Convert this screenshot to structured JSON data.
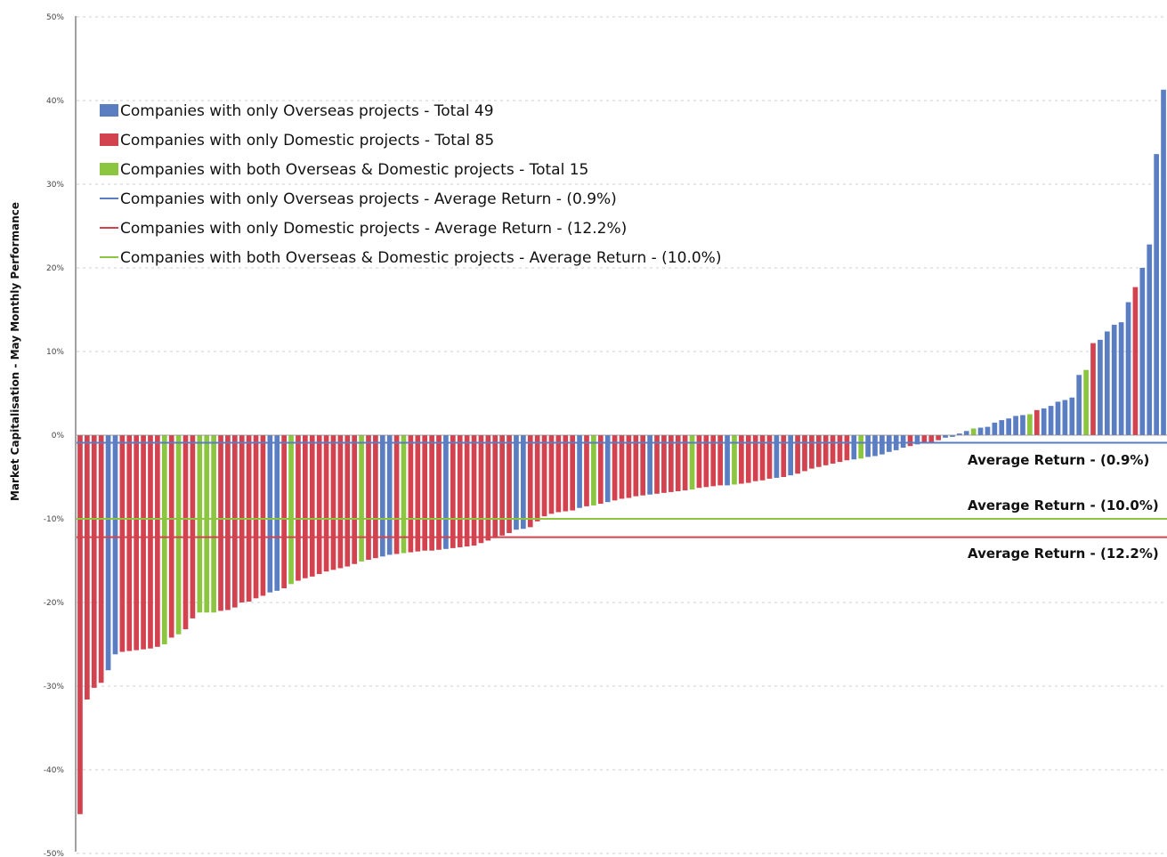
{
  "chart_data": {
    "type": "bar",
    "ylabel": "Market Capitalisation - May Monthly Performance",
    "ylim": [
      -50,
      50
    ],
    "yticks": [
      50,
      40,
      30,
      20,
      10,
      0,
      -10,
      -20,
      -30,
      -40,
      -50
    ],
    "ytick_labels": [
      "50%",
      "40%",
      "30%",
      "20%",
      "10%",
      "0%",
      "-10%",
      "-20%",
      "-30%",
      "-40%",
      "-50%"
    ],
    "grid": true,
    "legend_position": "top-left",
    "colors": {
      "overseas": "#5b7ec2",
      "domestic": "#d2434f",
      "both": "#8cc640"
    },
    "legend": [
      {
        "kind": "bar",
        "series": "overseas",
        "label": "Companies with only Overseas projects - Total 49"
      },
      {
        "kind": "bar",
        "series": "domestic",
        "label": "Companies with only Domestic projects - Total 85"
      },
      {
        "kind": "bar",
        "series": "both",
        "label": "Companies with both Overseas & Domestic projects - Total 15"
      },
      {
        "kind": "line",
        "series": "overseas",
        "label": "Companies with only Overseas projects - Average Return - (0.9%)"
      },
      {
        "kind": "line",
        "series": "domestic",
        "label": "Companies with only Domestic projects - Average Return - (12.2%)"
      },
      {
        "kind": "line",
        "series": "both",
        "label": "Companies with both Overseas & Domestic projects - Average Return - (10.0%)"
      }
    ],
    "averages": [
      {
        "series": "overseas",
        "value": -0.9,
        "label": "Average Return - (0.9%)"
      },
      {
        "series": "both",
        "value": -10.0,
        "label": "Average Return - (10.0%)"
      },
      {
        "series": "domestic",
        "value": -12.2,
        "label": "Average Return - (12.2%)"
      }
    ],
    "bars": [
      {
        "s": "d",
        "v": -45.3
      },
      {
        "s": "d",
        "v": -31.6
      },
      {
        "s": "d",
        "v": -30.2
      },
      {
        "s": "d",
        "v": -29.6
      },
      {
        "s": "o",
        "v": -28.1
      },
      {
        "s": "o",
        "v": -26.2
      },
      {
        "s": "d",
        "v": -25.9
      },
      {
        "s": "d",
        "v": -25.8
      },
      {
        "s": "d",
        "v": -25.7
      },
      {
        "s": "d",
        "v": -25.6
      },
      {
        "s": "d",
        "v": -25.5
      },
      {
        "s": "d",
        "v": -25.3
      },
      {
        "s": "b",
        "v": -25.0
      },
      {
        "s": "d",
        "v": -24.2
      },
      {
        "s": "b",
        "v": -23.8
      },
      {
        "s": "d",
        "v": -23.2
      },
      {
        "s": "d",
        "v": -21.9
      },
      {
        "s": "b",
        "v": -21.2
      },
      {
        "s": "b",
        "v": -21.2
      },
      {
        "s": "b",
        "v": -21.2
      },
      {
        "s": "d",
        "v": -21.0
      },
      {
        "s": "d",
        "v": -20.9
      },
      {
        "s": "d",
        "v": -20.6
      },
      {
        "s": "d",
        "v": -20.0
      },
      {
        "s": "d",
        "v": -19.9
      },
      {
        "s": "d",
        "v": -19.5
      },
      {
        "s": "d",
        "v": -19.2
      },
      {
        "s": "o",
        "v": -18.8
      },
      {
        "s": "o",
        "v": -18.6
      },
      {
        "s": "d",
        "v": -18.3
      },
      {
        "s": "b",
        "v": -17.8
      },
      {
        "s": "d",
        "v": -17.4
      },
      {
        "s": "d",
        "v": -17.1
      },
      {
        "s": "d",
        "v": -16.9
      },
      {
        "s": "d",
        "v": -16.6
      },
      {
        "s": "d",
        "v": -16.3
      },
      {
        "s": "d",
        "v": -16.1
      },
      {
        "s": "d",
        "v": -15.9
      },
      {
        "s": "d",
        "v": -15.7
      },
      {
        "s": "d",
        "v": -15.4
      },
      {
        "s": "b",
        "v": -15.1
      },
      {
        "s": "d",
        "v": -14.9
      },
      {
        "s": "d",
        "v": -14.7
      },
      {
        "s": "o",
        "v": -14.5
      },
      {
        "s": "o",
        "v": -14.3
      },
      {
        "s": "d",
        "v": -14.2
      },
      {
        "s": "b",
        "v": -14.1
      },
      {
        "s": "d",
        "v": -14.0
      },
      {
        "s": "d",
        "v": -13.9
      },
      {
        "s": "d",
        "v": -13.8
      },
      {
        "s": "d",
        "v": -13.8
      },
      {
        "s": "d",
        "v": -13.7
      },
      {
        "s": "o",
        "v": -13.6
      },
      {
        "s": "d",
        "v": -13.5
      },
      {
        "s": "d",
        "v": -13.4
      },
      {
        "s": "d",
        "v": -13.3
      },
      {
        "s": "d",
        "v": -13.2
      },
      {
        "s": "d",
        "v": -12.9
      },
      {
        "s": "d",
        "v": -12.6
      },
      {
        "s": "d",
        "v": -12.3
      },
      {
        "s": "d",
        "v": -12.0
      },
      {
        "s": "d",
        "v": -11.7
      },
      {
        "s": "o",
        "v": -11.3
      },
      {
        "s": "o",
        "v": -11.2
      },
      {
        "s": "d",
        "v": -11.0
      },
      {
        "s": "d",
        "v": -10.3
      },
      {
        "s": "d",
        "v": -9.7
      },
      {
        "s": "d",
        "v": -9.4
      },
      {
        "s": "d",
        "v": -9.2
      },
      {
        "s": "d",
        "v": -9.1
      },
      {
        "s": "d",
        "v": -9.0
      },
      {
        "s": "o",
        "v": -8.7
      },
      {
        "s": "d",
        "v": -8.5
      },
      {
        "s": "b",
        "v": -8.4
      },
      {
        "s": "d",
        "v": -8.2
      },
      {
        "s": "o",
        "v": -8.0
      },
      {
        "s": "d",
        "v": -7.8
      },
      {
        "s": "d",
        "v": -7.6
      },
      {
        "s": "d",
        "v": -7.5
      },
      {
        "s": "d",
        "v": -7.3
      },
      {
        "s": "d",
        "v": -7.2
      },
      {
        "s": "o",
        "v": -7.1
      },
      {
        "s": "d",
        "v": -7.0
      },
      {
        "s": "d",
        "v": -6.9
      },
      {
        "s": "d",
        "v": -6.8
      },
      {
        "s": "d",
        "v": -6.7
      },
      {
        "s": "d",
        "v": -6.6
      },
      {
        "s": "b",
        "v": -6.5
      },
      {
        "s": "d",
        "v": -6.3
      },
      {
        "s": "d",
        "v": -6.2
      },
      {
        "s": "d",
        "v": -6.1
      },
      {
        "s": "d",
        "v": -6.0
      },
      {
        "s": "o",
        "v": -6.0
      },
      {
        "s": "b",
        "v": -5.9
      },
      {
        "s": "d",
        "v": -5.8
      },
      {
        "s": "d",
        "v": -5.7
      },
      {
        "s": "d",
        "v": -5.5
      },
      {
        "s": "d",
        "v": -5.4
      },
      {
        "s": "d",
        "v": -5.2
      },
      {
        "s": "o",
        "v": -5.1
      },
      {
        "s": "d",
        "v": -5.0
      },
      {
        "s": "o",
        "v": -4.8
      },
      {
        "s": "d",
        "v": -4.6
      },
      {
        "s": "d",
        "v": -4.3
      },
      {
        "s": "d",
        "v": -4.0
      },
      {
        "s": "d",
        "v": -3.8
      },
      {
        "s": "d",
        "v": -3.6
      },
      {
        "s": "d",
        "v": -3.4
      },
      {
        "s": "d",
        "v": -3.2
      },
      {
        "s": "d",
        "v": -3.0
      },
      {
        "s": "o",
        "v": -2.9
      },
      {
        "s": "b",
        "v": -2.8
      },
      {
        "s": "o",
        "v": -2.6
      },
      {
        "s": "o",
        "v": -2.5
      },
      {
        "s": "o",
        "v": -2.3
      },
      {
        "s": "o",
        "v": -2.0
      },
      {
        "s": "o",
        "v": -1.8
      },
      {
        "s": "o",
        "v": -1.5
      },
      {
        "s": "d",
        "v": -1.3
      },
      {
        "s": "o",
        "v": -1.1
      },
      {
        "s": "d",
        "v": -0.9
      },
      {
        "s": "d",
        "v": -0.8
      },
      {
        "s": "d",
        "v": -0.6
      },
      {
        "s": "o",
        "v": -0.3
      },
      {
        "s": "o",
        "v": -0.2
      },
      {
        "s": "o",
        "v": 0.2
      },
      {
        "s": "o",
        "v": 0.5
      },
      {
        "s": "b",
        "v": 0.8
      },
      {
        "s": "o",
        "v": 0.9
      },
      {
        "s": "o",
        "v": 1.0
      },
      {
        "s": "o",
        "v": 1.5
      },
      {
        "s": "o",
        "v": 1.8
      },
      {
        "s": "o",
        "v": 2.0
      },
      {
        "s": "o",
        "v": 2.3
      },
      {
        "s": "o",
        "v": 2.4
      },
      {
        "s": "b",
        "v": 2.5
      },
      {
        "s": "d",
        "v": 3.0
      },
      {
        "s": "o",
        "v": 3.2
      },
      {
        "s": "o",
        "v": 3.5
      },
      {
        "s": "o",
        "v": 4.0
      },
      {
        "s": "o",
        "v": 4.2
      },
      {
        "s": "o",
        "v": 4.5
      },
      {
        "s": "o",
        "v": 7.2
      },
      {
        "s": "b",
        "v": 7.8
      },
      {
        "s": "d",
        "v": 11.0
      },
      {
        "s": "o",
        "v": 11.4
      },
      {
        "s": "o",
        "v": 12.4
      },
      {
        "s": "o",
        "v": 13.2
      },
      {
        "s": "o",
        "v": 13.5
      },
      {
        "s": "o",
        "v": 15.9
      },
      {
        "s": "d",
        "v": 17.7
      },
      {
        "s": "o",
        "v": 20.0
      },
      {
        "s": "o",
        "v": 22.8
      },
      {
        "s": "o",
        "v": 33.6
      },
      {
        "s": "o",
        "v": 41.3
      }
    ]
  }
}
